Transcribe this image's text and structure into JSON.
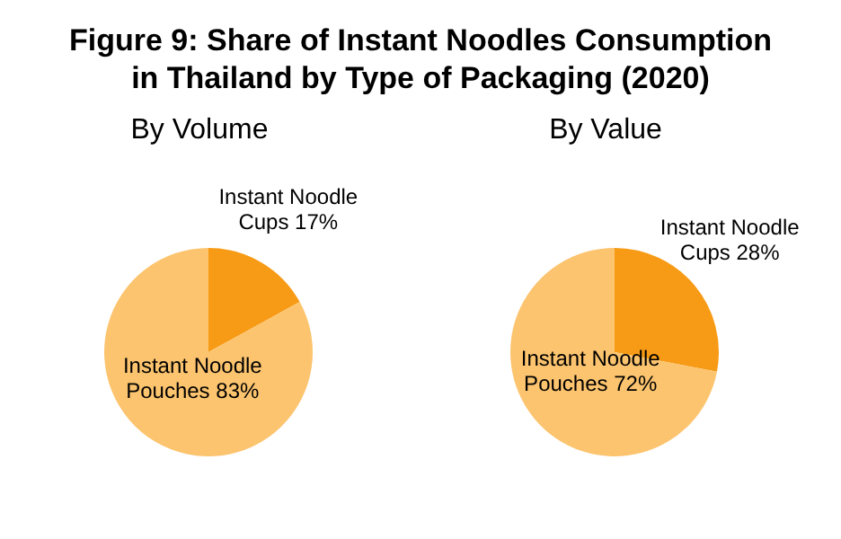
{
  "chart_data": [
    {
      "type": "pie",
      "title": "Figure 9: Share of Instant Noodles Consumption in Thailand  by Type of Packaging (2020)",
      "subtitle": "By Volume",
      "categories": [
        "Instant Noodle Cups",
        "Instant Noodle Pouches"
      ],
      "values": [
        17,
        83
      ],
      "colors": [
        "#f79b16",
        "#fcc46e"
      ],
      "value_labels": [
        "17%",
        "83%"
      ],
      "legend": false
    },
    {
      "type": "pie",
      "subtitle": "By Value",
      "categories": [
        "Instant Noodle Cups",
        "Instant Noodle Pouches"
      ],
      "values": [
        28,
        72
      ],
      "colors": [
        "#f79b16",
        "#fcc46e"
      ],
      "value_labels": [
        "28%",
        "72%"
      ],
      "legend": false
    }
  ]
}
